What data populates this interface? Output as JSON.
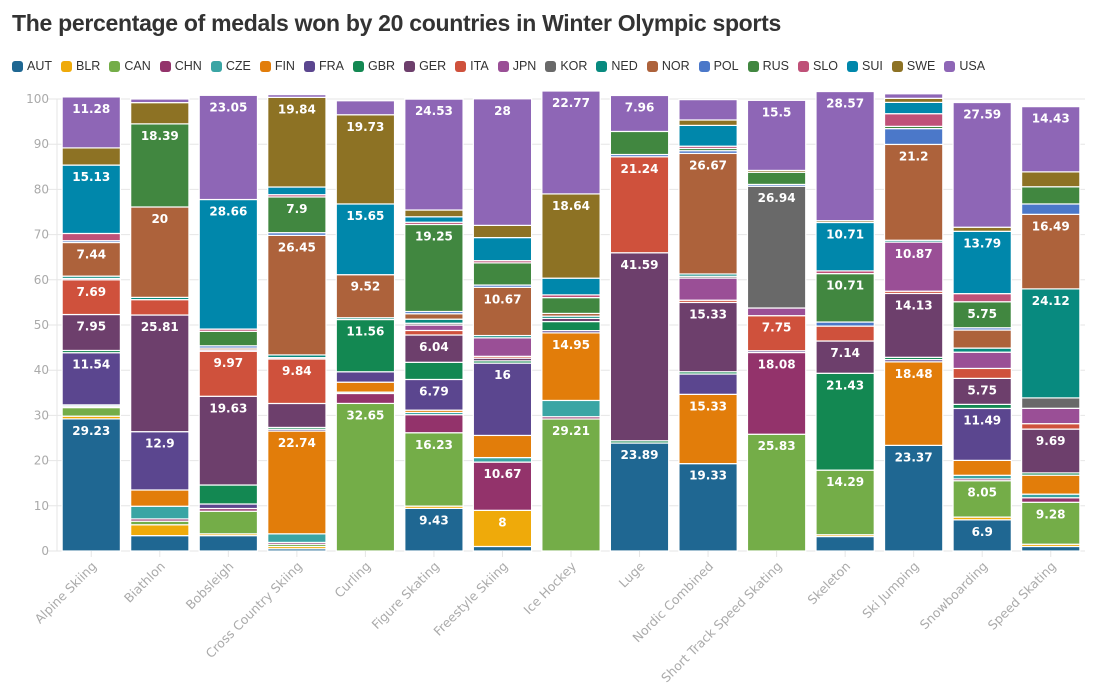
{
  "chart_data": {
    "type": "bar",
    "stacked": true,
    "title": "The percentage of medals won by 20 countries in Winter Olympic sports",
    "xlabel": "",
    "ylabel": "",
    "ylim": [
      0,
      100
    ],
    "yticks": [
      0,
      10,
      20,
      30,
      40,
      50,
      60,
      70,
      80,
      90,
      100
    ],
    "grid": true,
    "legend_position": "top-left",
    "categories": [
      "Alpine Skiing",
      "Biathlon",
      "Bobsleigh",
      "Cross Country Skiing",
      "Curling",
      "Figure Skating",
      "Freestyle Skiing",
      "Ice Hockey",
      "Luge",
      "Nordic Combined",
      "Short Track Speed Skating",
      "Skeleton",
      "Ski Jumping",
      "Snowboarding",
      "Speed Skating"
    ],
    "series": [
      {
        "name": "AUT",
        "color": "#1f6792",
        "values": [
          29.23,
          3.4,
          3.4,
          0.5,
          0,
          9.43,
          1.0,
          0,
          23.89,
          19.33,
          0,
          3.2,
          23.37,
          6.9,
          1.0
        ]
      },
      {
        "name": "BLR",
        "color": "#efaa0a",
        "values": [
          0.6,
          2.4,
          0.4,
          0.5,
          0,
          0.5,
          8.0,
          0,
          0,
          0,
          0,
          0.4,
          0,
          0.6,
          0.5
        ]
      },
      {
        "name": "CAN",
        "color": "#74ad48",
        "values": [
          1.9,
          0.8,
          5.0,
          0.5,
          32.65,
          16.23,
          0,
          29.21,
          0,
          0,
          25.83,
          14.29,
          0,
          8.05,
          9.28
        ]
      },
      {
        "name": "CHN",
        "color": "#93336b",
        "values": [
          0.3,
          0.5,
          0.6,
          0.4,
          2.2,
          4.0,
          10.67,
          0.5,
          0,
          0,
          18.08,
          0,
          0,
          0.4,
          1.0
        ]
      },
      {
        "name": "CZE",
        "color": "#3aa5a4",
        "values": [
          0.3,
          2.8,
          0,
          1.9,
          0.3,
          0.5,
          1.0,
          3.6,
          0,
          0,
          0,
          0,
          0,
          0.8,
          0.8
        ]
      },
      {
        "name": "FIN",
        "color": "#e27d0a",
        "values": [
          0,
          3.6,
          0,
          22.74,
          2.2,
          0.5,
          4.9,
          14.95,
          0,
          15.33,
          0,
          0,
          18.48,
          3.3,
          4.2
        ]
      },
      {
        "name": "FRA",
        "color": "#5b468f",
        "values": [
          11.54,
          12.9,
          1.0,
          0.4,
          2.3,
          6.79,
          16.0,
          0.5,
          0,
          4.5,
          0.4,
          0,
          0.5,
          11.49,
          0
        ]
      },
      {
        "name": "GBR",
        "color": "#138852",
        "values": [
          0.5,
          0,
          4.2,
          0.4,
          11.56,
          3.8,
          0.5,
          2.0,
          0.5,
          0.5,
          0,
          21.43,
          0.5,
          0.9,
          0.5
        ]
      },
      {
        "name": "GER",
        "color": "#6d3f6c",
        "values": [
          7.95,
          25.81,
          19.63,
          5.3,
          0,
          6.04,
          0.6,
          0.7,
          41.59,
          15.33,
          0,
          7.14,
          14.13,
          5.75,
          9.69
        ]
      },
      {
        "name": "ITA",
        "color": "#cf513c",
        "values": [
          7.69,
          3.4,
          9.97,
          9.84,
          0,
          1.0,
          0.4,
          0,
          21.24,
          0.5,
          7.75,
          3.3,
          0.5,
          2.2,
          1.2
        ]
      },
      {
        "name": "JPN",
        "color": "#9a4f96",
        "values": [
          0.3,
          0,
          0.3,
          0.3,
          0,
          1.2,
          4.1,
          0,
          0,
          4.9,
          1.7,
          0,
          10.87,
          3.6,
          3.4
        ]
      },
      {
        "name": "KOR",
        "color": "#696969",
        "values": [
          0,
          0,
          0,
          0,
          0,
          0.4,
          0,
          0,
          0,
          0.4,
          26.94,
          0,
          0,
          0,
          2.3
        ]
      },
      {
        "name": "NED",
        "color": "#088a7f",
        "values": [
          0.5,
          0.5,
          0,
          0.6,
          0.4,
          0.9,
          0.5,
          0.5,
          0,
          0.5,
          0,
          0,
          0.4,
          0.9,
          24.12
        ]
      },
      {
        "name": "NOR",
        "color": "#ad623b",
        "values": [
          7.44,
          20.0,
          0.4,
          26.45,
          9.52,
          1.2,
          10.67,
          0.6,
          0,
          26.67,
          0,
          0,
          21.2,
          4.0,
          16.49
        ]
      },
      {
        "name": "POL",
        "color": "#4b78c9",
        "values": [
          0.4,
          0,
          0.5,
          0.6,
          0,
          0.5,
          0.5,
          0,
          0.5,
          0.6,
          0.4,
          0.9,
          3.5,
          0.5,
          2.3
        ]
      },
      {
        "name": "RUS",
        "color": "#418740",
        "values": [
          0,
          18.39,
          3.2,
          7.9,
          0,
          19.25,
          4.9,
          3.5,
          5.1,
          0.5,
          2.7,
          10.71,
          0.5,
          5.75,
          3.8
        ]
      },
      {
        "name": "SLO",
        "color": "#bf5178",
        "values": [
          1.6,
          0,
          0.5,
          0.5,
          0,
          0.5,
          0.5,
          0.6,
          0,
          0.5,
          0,
          0.6,
          2.8,
          1.8,
          0
        ]
      },
      {
        "name": "SUI",
        "color": "#0087ab",
        "values": [
          15.13,
          0,
          28.66,
          1.7,
          15.65,
          1.2,
          5.1,
          3.7,
          0,
          4.6,
          0,
          10.71,
          2.5,
          13.79,
          0
        ]
      },
      {
        "name": "SWE",
        "color": "#8d7224",
        "values": [
          3.8,
          4.7,
          0,
          19.84,
          19.73,
          1.5,
          2.7,
          18.64,
          0,
          1.2,
          0.4,
          0.4,
          0.9,
          0.9,
          3.3
        ]
      },
      {
        "name": "USA",
        "color": "#8e66b6",
        "values": [
          11.28,
          0.8,
          23.05,
          0.6,
          3.1,
          24.53,
          28.0,
          22.77,
          7.96,
          4.5,
          15.5,
          28.57,
          1.0,
          27.59,
          14.43
        ]
      }
    ],
    "data_labels": [
      {
        "category": "Alpine Skiing",
        "series": "AUT",
        "label": "29.23"
      },
      {
        "category": "Alpine Skiing",
        "series": "FRA",
        "label": "11.54"
      },
      {
        "category": "Alpine Skiing",
        "series": "GER",
        "label": "7.95"
      },
      {
        "category": "Alpine Skiing",
        "series": "ITA",
        "label": "7.69"
      },
      {
        "category": "Alpine Skiing",
        "series": "NOR",
        "label": "7.44"
      },
      {
        "category": "Alpine Skiing",
        "series": "SUI",
        "label": "15.13"
      },
      {
        "category": "Alpine Skiing",
        "series": "USA",
        "label": "11.28"
      },
      {
        "category": "Biathlon",
        "series": "FRA",
        "label": "12.9"
      },
      {
        "category": "Biathlon",
        "series": "GER",
        "label": "25.81"
      },
      {
        "category": "Biathlon",
        "series": "NOR",
        "label": "20"
      },
      {
        "category": "Biathlon",
        "series": "RUS",
        "label": "18.39"
      },
      {
        "category": "Bobsleigh",
        "series": "GER",
        "label": "19.63"
      },
      {
        "category": "Bobsleigh",
        "series": "ITA",
        "label": "9.97"
      },
      {
        "category": "Bobsleigh",
        "series": "SUI",
        "label": "28.66"
      },
      {
        "category": "Bobsleigh",
        "series": "USA",
        "label": "23.05"
      },
      {
        "category": "Cross Country Skiing",
        "series": "FIN",
        "label": "22.74"
      },
      {
        "category": "Cross Country Skiing",
        "series": "ITA",
        "label": "9.84"
      },
      {
        "category": "Cross Country Skiing",
        "series": "NOR",
        "label": "26.45"
      },
      {
        "category": "Cross Country Skiing",
        "series": "RUS",
        "label": "7.9"
      },
      {
        "category": "Cross Country Skiing",
        "series": "SWE",
        "label": "19.84"
      },
      {
        "category": "Curling",
        "series": "CAN",
        "label": "32.65"
      },
      {
        "category": "Curling",
        "series": "GBR",
        "label": "11.56"
      },
      {
        "category": "Curling",
        "series": "NOR",
        "label": "9.52"
      },
      {
        "category": "Curling",
        "series": "SUI",
        "label": "15.65"
      },
      {
        "category": "Curling",
        "series": "SWE",
        "label": "19.73"
      },
      {
        "category": "Figure Skating",
        "series": "AUT",
        "label": "9.43"
      },
      {
        "category": "Figure Skating",
        "series": "CAN",
        "label": "16.23"
      },
      {
        "category": "Figure Skating",
        "series": "FRA",
        "label": "6.79"
      },
      {
        "category": "Figure Skating",
        "series": "GER",
        "label": "6.04"
      },
      {
        "category": "Figure Skating",
        "series": "RUS",
        "label": "19.25"
      },
      {
        "category": "Figure Skating",
        "series": "USA",
        "label": "24.53"
      },
      {
        "category": "Freestyle Skiing",
        "series": "BLR",
        "label": "8"
      },
      {
        "category": "Freestyle Skiing",
        "series": "CHN",
        "label": "10.67"
      },
      {
        "category": "Freestyle Skiing",
        "series": "FRA",
        "label": "16"
      },
      {
        "category": "Freestyle Skiing",
        "series": "NOR",
        "label": "10.67"
      },
      {
        "category": "Freestyle Skiing",
        "series": "USA",
        "label": "28"
      },
      {
        "category": "Ice Hockey",
        "series": "CAN",
        "label": "29.21"
      },
      {
        "category": "Ice Hockey",
        "series": "FIN",
        "label": "14.95"
      },
      {
        "category": "Ice Hockey",
        "series": "SWE",
        "label": "18.64"
      },
      {
        "category": "Ice Hockey",
        "series": "USA",
        "label": "22.77"
      },
      {
        "category": "Luge",
        "series": "AUT",
        "label": "23.89"
      },
      {
        "category": "Luge",
        "series": "GER",
        "label": "41.59"
      },
      {
        "category": "Luge",
        "series": "ITA",
        "label": "21.24"
      },
      {
        "category": "Luge",
        "series": "USA",
        "label": "7.96"
      },
      {
        "category": "Nordic Combined",
        "series": "AUT",
        "label": "19.33"
      },
      {
        "category": "Nordic Combined",
        "series": "FIN",
        "label": "15.33"
      },
      {
        "category": "Nordic Combined",
        "series": "GER",
        "label": "15.33"
      },
      {
        "category": "Nordic Combined",
        "series": "NOR",
        "label": "26.67"
      },
      {
        "category": "Short Track Speed Skating",
        "series": "CAN",
        "label": "25.83"
      },
      {
        "category": "Short Track Speed Skating",
        "series": "CHN",
        "label": "18.08"
      },
      {
        "category": "Short Track Speed Skating",
        "series": "ITA",
        "label": "7.75"
      },
      {
        "category": "Short Track Speed Skating",
        "series": "KOR",
        "label": "26.94"
      },
      {
        "category": "Short Track Speed Skating",
        "series": "USA",
        "label": "15.5"
      },
      {
        "category": "Skeleton",
        "series": "CAN",
        "label": "14.29"
      },
      {
        "category": "Skeleton",
        "series": "GBR",
        "label": "21.43"
      },
      {
        "category": "Skeleton",
        "series": "GER",
        "label": "7.14"
      },
      {
        "category": "Skeleton",
        "series": "RUS",
        "label": "10.71"
      },
      {
        "category": "Skeleton",
        "series": "SUI",
        "label": "10.71"
      },
      {
        "category": "Skeleton",
        "series": "USA",
        "label": "28.57"
      },
      {
        "category": "Ski Jumping",
        "series": "AUT",
        "label": "23.37"
      },
      {
        "category": "Ski Jumping",
        "series": "FIN",
        "label": "18.48"
      },
      {
        "category": "Ski Jumping",
        "series": "GER",
        "label": "14.13"
      },
      {
        "category": "Ski Jumping",
        "series": "JPN",
        "label": "10.87"
      },
      {
        "category": "Ski Jumping",
        "series": "NOR",
        "label": "21.2"
      },
      {
        "category": "Snowboarding",
        "series": "AUT",
        "label": "6.9"
      },
      {
        "category": "Snowboarding",
        "series": "CAN",
        "label": "8.05"
      },
      {
        "category": "Snowboarding",
        "series": "FRA",
        "label": "11.49"
      },
      {
        "category": "Snowboarding",
        "series": "GER",
        "label": "5.75"
      },
      {
        "category": "Snowboarding",
        "series": "RUS",
        "label": "5.75"
      },
      {
        "category": "Snowboarding",
        "series": "SUI",
        "label": "13.79"
      },
      {
        "category": "Snowboarding",
        "series": "USA",
        "label": "27.59"
      },
      {
        "category": "Speed Skating",
        "series": "CAN",
        "label": "9.28"
      },
      {
        "category": "Speed Skating",
        "series": "GER",
        "label": "9.69"
      },
      {
        "category": "Speed Skating",
        "series": "NED",
        "label": "24.12"
      },
      {
        "category": "Speed Skating",
        "series": "NOR",
        "label": "16.49"
      },
      {
        "category": "Speed Skating",
        "series": "USA",
        "label": "14.43"
      }
    ]
  }
}
